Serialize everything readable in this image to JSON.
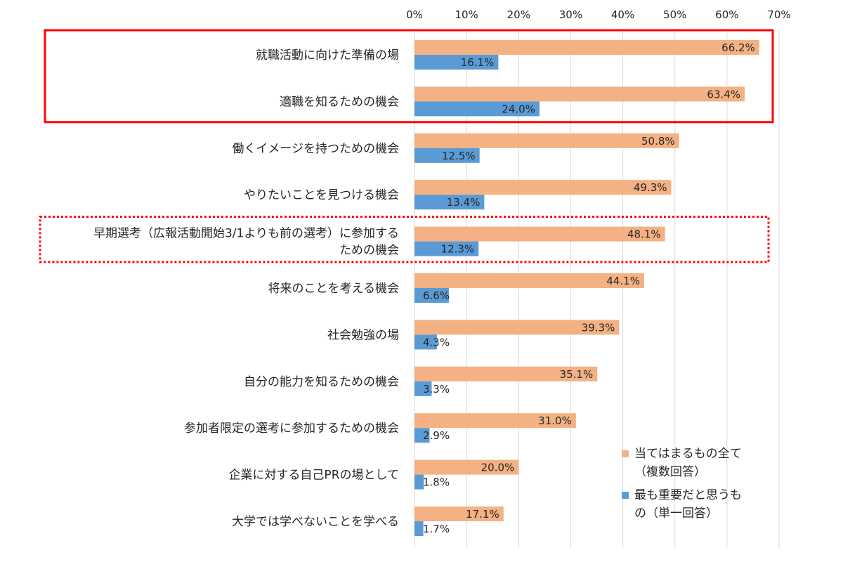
{
  "chart_data": {
    "type": "bar",
    "orientation": "horizontal",
    "xlim": [
      0,
      70
    ],
    "x_ticks": [
      "0%",
      "10%",
      "20%",
      "30%",
      "40%",
      "50%",
      "60%",
      "70%"
    ],
    "tick_values": [
      0,
      10,
      20,
      30,
      40,
      50,
      60,
      70
    ],
    "grid": true,
    "legend_position": "bottom-right",
    "categories": [
      [
        "就職活動に向けた準備の場"
      ],
      [
        "適職を知るための機会"
      ],
      [
        "働くイメージを持つための機会"
      ],
      [
        "やりたいことを見つける機会"
      ],
      [
        "早期選考（広報活動開始3/1よりも前の選考）に参加する",
        "ための機会"
      ],
      [
        "将来のことを考える機会"
      ],
      [
        "社会勉強の場"
      ],
      [
        "自分の能力を知るための機会"
      ],
      [
        "参加者限定の選考に参加するための機会"
      ],
      [
        "企業に対する自己PRの場として"
      ],
      [
        "大学では学べないことを学べる"
      ]
    ],
    "series": [
      {
        "name": [
          "当てはまるもの全て",
          "（複数回答）"
        ],
        "color": "#F4B183",
        "values": [
          66.2,
          63.4,
          50.8,
          49.3,
          48.1,
          44.1,
          39.3,
          35.1,
          31.0,
          20.0,
          17.1
        ],
        "labels": [
          "66.2%",
          "63.4%",
          "50.8%",
          "49.3%",
          "48.1%",
          "44.1%",
          "39.3%",
          "35.1%",
          "31.0%",
          "20.0%",
          "17.1%"
        ]
      },
      {
        "name": [
          "最も重要だと思うも",
          "の（単一回答）"
        ],
        "color": "#5B9BD5",
        "values": [
          16.1,
          24.0,
          12.5,
          13.4,
          12.3,
          6.6,
          4.3,
          3.3,
          2.9,
          1.8,
          1.7
        ],
        "labels": [
          "16.1%",
          "24.0%",
          "12.5%",
          "13.4%",
          "12.3%",
          "6.6%",
          "4.3%",
          "3.3%",
          "2.9%",
          "1.8%",
          "1.7%"
        ]
      }
    ],
    "highlight_boxes": [
      {
        "style": "solid",
        "color": "#FF0000",
        "from_category": 0,
        "to_category": 1
      },
      {
        "style": "dotted",
        "color": "#FF0000",
        "from_category": 4,
        "to_category": 4
      }
    ]
  }
}
